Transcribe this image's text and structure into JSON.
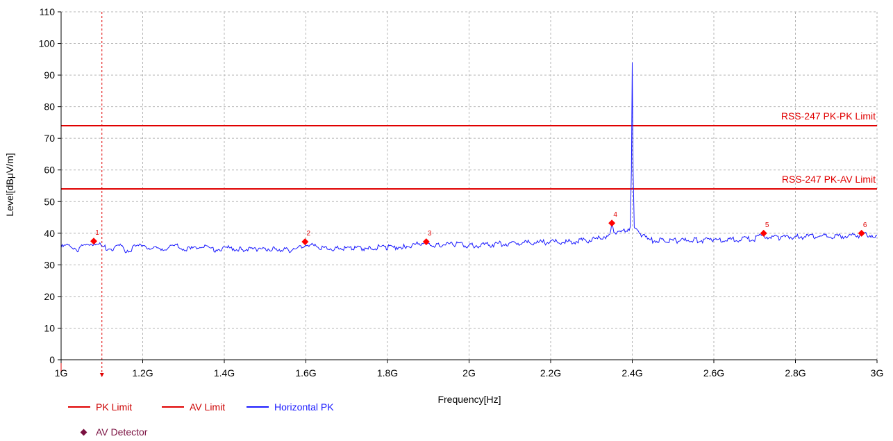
{
  "chart_data": {
    "type": "line",
    "xlabel": "Frequency[Hz]",
    "ylabel": "Level[dBμV/m]",
    "xlim": [
      1000000000,
      3000000000
    ],
    "ylim": [
      0,
      110
    ],
    "grid": true,
    "x_ticks": [
      {
        "value": 1000000000,
        "label": "1G"
      },
      {
        "value": 1200000000,
        "label": "1.2G"
      },
      {
        "value": 1400000000,
        "label": "1.4G"
      },
      {
        "value": 1600000000,
        "label": "1.6G"
      },
      {
        "value": 1800000000,
        "label": "1.8G"
      },
      {
        "value": 2000000000,
        "label": "2G"
      },
      {
        "value": 2200000000,
        "label": "2.2G"
      },
      {
        "value": 2400000000,
        "label": "2.4G"
      },
      {
        "value": 2600000000,
        "label": "2.6G"
      },
      {
        "value": 2800000000,
        "label": "2.8G"
      },
      {
        "value": 3000000000,
        "label": "3G"
      }
    ],
    "y_ticks": [
      0,
      10,
      20,
      30,
      40,
      50,
      60,
      70,
      80,
      90,
      100,
      110
    ],
    "limit_lines": [
      {
        "name": "RSS-247 PK-PK Limit",
        "value": 74,
        "color": "#e00000"
      },
      {
        "name": "RSS-247 PK-AV Limit",
        "value": 54,
        "color": "#e00000"
      }
    ],
    "series": [
      {
        "name": "Horizontal PK",
        "color": "#1a1aff",
        "x": [
          1000000000,
          1020000000,
          1040000000,
          1060000000,
          1080000000,
          1100000000,
          1120000000,
          1140000000,
          1160000000,
          1180000000,
          1200000000,
          1220000000,
          1240000000,
          1260000000,
          1280000000,
          1300000000,
          1320000000,
          1340000000,
          1360000000,
          1380000000,
          1400000000,
          1440000000,
          1480000000,
          1520000000,
          1560000000,
          1580000000,
          1600000000,
          1640000000,
          1680000000,
          1720000000,
          1760000000,
          1800000000,
          1840000000,
          1880000000,
          1920000000,
          1960000000,
          2000000000,
          2050000000,
          2100000000,
          2150000000,
          2200000000,
          2250000000,
          2300000000,
          2330000000,
          2345000000,
          2350000000,
          2355000000,
          2370000000,
          2385000000,
          2395000000,
          2398000000,
          2400000000,
          2402000000,
          2405000000,
          2410000000,
          2420000000,
          2440000000,
          2480000000,
          2520000000,
          2560000000,
          2600000000,
          2650000000,
          2700000000,
          2720000000,
          2760000000,
          2800000000,
          2850000000,
          2900000000,
          2950000000,
          2960000000,
          2980000000,
          3000000000
        ],
        "values": [
          35.5,
          36.2,
          35.0,
          36.0,
          37.0,
          35.8,
          35.0,
          36.2,
          34.5,
          35.5,
          36.4,
          35.2,
          34.8,
          35.6,
          36.0,
          35.3,
          34.9,
          35.8,
          35.2,
          34.8,
          35.5,
          35.0,
          34.9,
          35.3,
          34.4,
          35.2,
          36.8,
          35.1,
          35.4,
          35.0,
          35.6,
          35.4,
          35.8,
          36.6,
          36.2,
          36.7,
          36.0,
          36.4,
          36.8,
          37.0,
          37.1,
          37.3,
          37.9,
          38.5,
          40.0,
          43.0,
          40.5,
          40.3,
          41.0,
          42.0,
          60.0,
          94.0,
          60.0,
          42.0,
          41.0,
          40.0,
          37.8,
          37.6,
          37.7,
          37.8,
          37.9,
          38.0,
          38.3,
          39.2,
          38.6,
          38.9,
          39.0,
          39.1,
          39.3,
          39.4,
          39.5,
          39.2
        ]
      }
    ],
    "markers": [
      {
        "label": "1",
        "x": 1080000000,
        "y": 37.5
      },
      {
        "label": "2",
        "x": 1598000000,
        "y": 37.3
      },
      {
        "label": "3",
        "x": 1895000000,
        "y": 37.3
      },
      {
        "label": "4",
        "x": 2350000000,
        "y": 43.2
      },
      {
        "label": "5",
        "x": 2722000000,
        "y": 40.0
      },
      {
        "label": "6",
        "x": 2962000000,
        "y": 40.0
      }
    ],
    "vertical_markers": [
      {
        "x": 1000000000,
        "style": "solid",
        "color": "#e00000"
      },
      {
        "x": 1100000000,
        "style": "dashed",
        "color": "#e00000"
      }
    ],
    "legend": [
      {
        "label": "PK Limit",
        "kind": "line",
        "color": "#e00000"
      },
      {
        "label": "AV Limit",
        "kind": "line",
        "color": "#e00000"
      },
      {
        "label": "Horizontal PK",
        "kind": "line",
        "color": "#1a1aff"
      },
      {
        "label": "AV Detector",
        "kind": "diamond",
        "color": "#7a1040"
      }
    ]
  }
}
